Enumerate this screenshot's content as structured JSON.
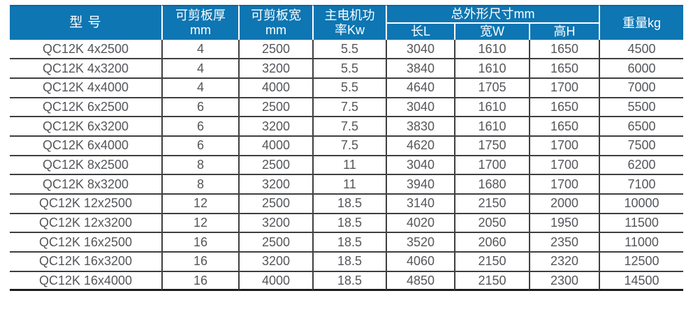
{
  "colors": {
    "header_bg": "#0e76b2",
    "header_text": "#ffffff",
    "body_text": "#54565a",
    "grid_line": "#3f3f3f",
    "outer_bottom_line": "#1c1c1c",
    "header_divider": "#ffffff"
  },
  "table": {
    "header": {
      "model": "型 号",
      "thickness_line1": "可剪板厚",
      "thickness_line2": "mm",
      "plate_width_line1": "可剪板宽",
      "plate_width_line2": "mm",
      "power_line1": "主电机功",
      "power_line2": "率Kw",
      "dims_group": "总外形尺寸mm",
      "dim_length": "长L",
      "dim_width": "宽W",
      "dim_height": "高H",
      "weight": "重量kg"
    },
    "rows": [
      [
        "QC12K 4x2500",
        "4",
        "2500",
        "5.5",
        "3040",
        "1610",
        "1650",
        "4500"
      ],
      [
        "QC12K 4x3200",
        "4",
        "3200",
        "5.5",
        "3840",
        "1610",
        "1650",
        "6000"
      ],
      [
        "QC12K 4x4000",
        "4",
        "4000",
        "5.5",
        "4640",
        "1705",
        "1700",
        "7000"
      ],
      [
        "QC12K 6x2500",
        "6",
        "2500",
        "7.5",
        "3040",
        "1610",
        "1650",
        "5500"
      ],
      [
        "QC12K 6x3200",
        "6",
        "3200",
        "7.5",
        "3830",
        "1610",
        "1650",
        "6500"
      ],
      [
        "QC12K 6x4000",
        "6",
        "4000",
        "7.5",
        "4620",
        "1750",
        "1700",
        "7500"
      ],
      [
        "QC12K 8x2500",
        "8",
        "2500",
        "11",
        "3040",
        "1700",
        "1700",
        "6200"
      ],
      [
        "QC12K 8x3200",
        "8",
        "3200",
        "11",
        "3940",
        "1680",
        "1700",
        "7100"
      ],
      [
        "QC12K 12x2500",
        "12",
        "2500",
        "18.5",
        "3140",
        "2150",
        "2000",
        "10000"
      ],
      [
        "QC12K 12x3200",
        "12",
        "3200",
        "18.5",
        "4020",
        "2050",
        "1950",
        "11500"
      ],
      [
        "QC12K 16x2500",
        "16",
        "2500",
        "18.5",
        "3520",
        "2060",
        "2350",
        "11000"
      ],
      [
        "QC12K 16x3200",
        "16",
        "3200",
        "18.5",
        "4060",
        "2150",
        "2320",
        "12500"
      ],
      [
        "QC12K 16x4000",
        "16",
        "4000",
        "18.5",
        "4850",
        "2150",
        "2300",
        "14500"
      ]
    ]
  }
}
